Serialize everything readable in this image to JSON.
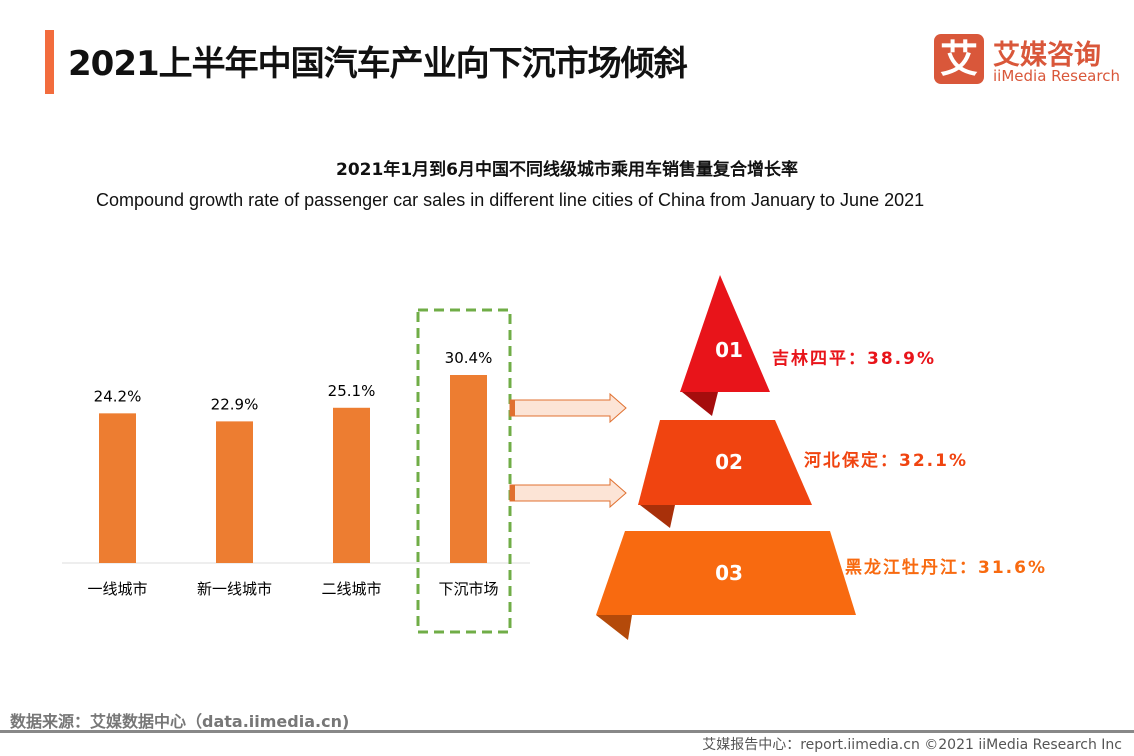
{
  "header": {
    "title": "2021上半年中国汽车产业向下沉市场倾斜",
    "logo_mark": "艾",
    "logo_cn": "艾媒咨询",
    "logo_en": "iiMedia Research"
  },
  "subtitle_cn": "2021年1月到6月中国不同线级城市乘用车销售量复合增长率",
  "subtitle_en": "Compound growth rate of passenger car sales in different line cities of China from January to June 2021",
  "chart_data": {
    "type": "bar",
    "categories": [
      "一线城市",
      "新一线城市",
      "二线城市",
      "下沉市场"
    ],
    "values": [
      24.2,
      22.9,
      25.1,
      30.4
    ],
    "data_labels": [
      "24.2%",
      "22.9%",
      "25.1%",
      "30.4%"
    ],
    "highlighted": "下沉市场",
    "bar_color": "#ed7d31",
    "ylim": [
      0,
      35
    ]
  },
  "ranking": [
    {
      "rank": "01",
      "label": "吉林四平：38.9%",
      "color": "#e8141a"
    },
    {
      "rank": "02",
      "label": "河北保定：32.1%",
      "color": "#f04410"
    },
    {
      "rank": "03",
      "label": "黑龙江牡丹江：31.6%",
      "color": "#f86a10"
    }
  ],
  "footer": {
    "source": "数据来源：艾媒数据中心（data.iimedia.cn)",
    "report": "艾媒报告中心：report.iimedia.cn   ©2021  iiMedia Research  Inc"
  }
}
